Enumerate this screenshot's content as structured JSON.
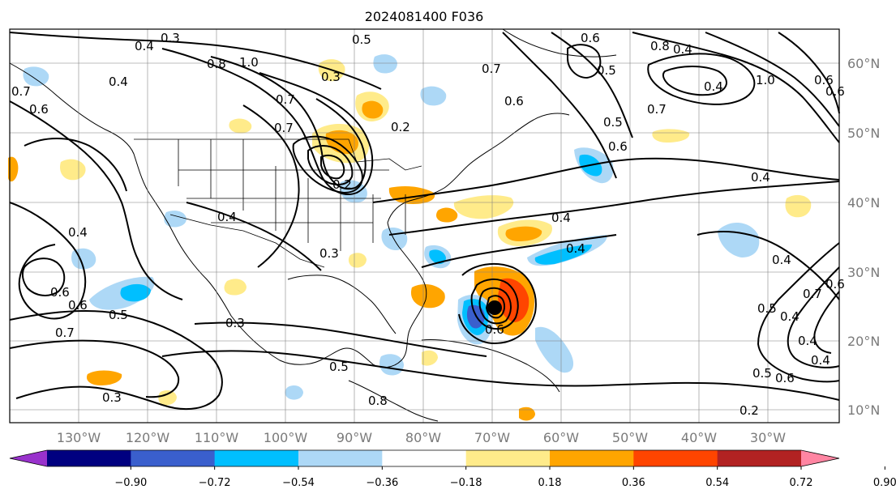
{
  "title": "2024081400 F036",
  "colors": {
    "ocean": "#ffffff",
    "contour": "#000000",
    "grid": "#7f7f7f",
    "tick_text": "#7a7a7a"
  },
  "lon_ticks": [
    "130°W",
    "120°W",
    "110°W",
    "100°W",
    "90°W",
    "80°W",
    "70°W",
    "60°W",
    "50°W",
    "40°W",
    "30°W"
  ],
  "lat_ticks": [
    "60°N",
    "50°N",
    "40°N",
    "30°N",
    "20°N",
    "10°N"
  ],
  "colorbar": {
    "ticks": [
      "−0.90",
      "−0.72",
      "−0.54",
      "−0.36",
      "−0.18",
      "0.18",
      "0.36",
      "0.54",
      "0.72",
      "0.90"
    ],
    "colors": [
      "#9932cc",
      "#000080",
      "#3a5fcd",
      "#00bfff",
      "#add8f6",
      "#ffffff",
      "#ffeb8a",
      "#ffa500",
      "#ff4500",
      "#b22222",
      "#ff85a2"
    ],
    "under_color": "#9932cc",
    "over_color": "#ff85a2"
  },
  "contour_labels": [
    "0.3",
    "0.4",
    "0.8",
    "1.0",
    "0.4",
    "0.7",
    "0.6",
    "0.4",
    "0.6",
    "0.4",
    "0.5",
    "0.6",
    "0.7",
    "0.2",
    "0.6",
    "0.7",
    "1.0",
    "0.7",
    "0.8",
    "0.6",
    "0.7",
    "0.6",
    "0.4",
    "0.5",
    "0.4",
    "0.4",
    "0.4",
    "0.7",
    "0.6",
    "0.4",
    "0.5",
    "0.7",
    "0.3",
    "0.6",
    "0.5",
    "0.4",
    "0.3",
    "0.3",
    "0.5",
    "0.6",
    "0.2",
    "0.4",
    "0.4",
    "0.6",
    "0.5",
    "0.8",
    "0.6",
    "0.5",
    "0.4",
    "0.3",
    "0.2"
  ],
  "highs_marker": "●"
}
